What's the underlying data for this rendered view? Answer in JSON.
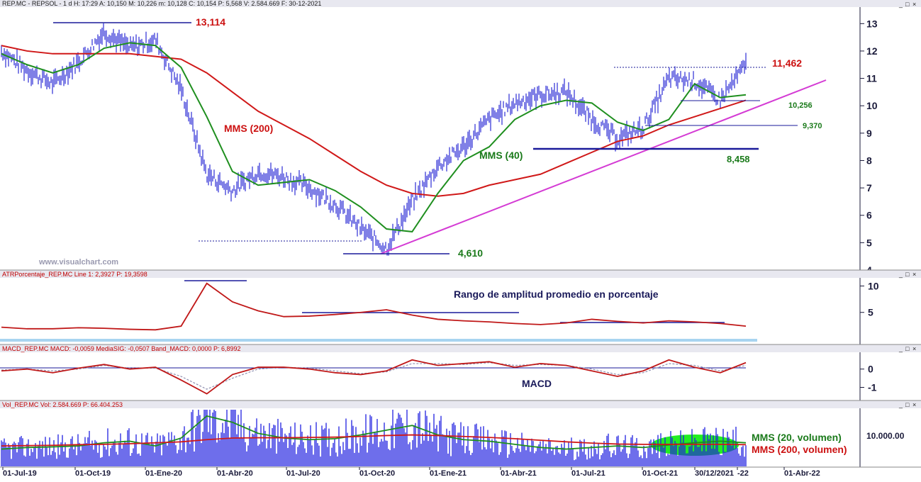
{
  "colors": {
    "price": "#2b2bd6",
    "mms200": "#d01818",
    "mms40": "#1f8f1f",
    "trendline": "#d43bd4",
    "level": "#1a1a9a",
    "axis": "#1a1a3a",
    "ann_red": "#cc1111",
    "ann_green": "#1a7a1a",
    "macd_signal": "#9090b0",
    "header_bar": "#e8e8f0",
    "atr_band": "#a8d4f0",
    "vol_ellipse": "#22ee22"
  },
  "panels": {
    "price": {
      "header": "REP.MC - REPSOL - 1 d H: 17:29 A: 10,150 M: 10,226 m: 10,128 C: 10,154 P: 5,568 V: 2.584.669 F: 30-12-2021",
      "watermark": "www.visualchart.com",
      "yticks": [
        "13",
        "12",
        "11",
        "10",
        "9",
        "8",
        "7",
        "6",
        "5",
        "4"
      ],
      "annotations": {
        "high": "13,114",
        "resistance": "11,462",
        "s1": "10,256",
        "s2": "9,370",
        "s3": "8,458",
        "low": "4,610",
        "mms200_label": "MMS (200)",
        "mms40_label": "MMS (40)"
      }
    },
    "atr": {
      "header": "ATRPorcentaje_REP.MC Line 1: 2,3927 P: 19,3598",
      "title": "Rango de amplitud promedio en porcentaje",
      "yticks": [
        "10",
        "5"
      ]
    },
    "macd": {
      "header": "MACD_REP.MC MACD: -0,0059 MediaSIG: -0,0507 Band_MACD: 0,0000 P: 6,8992",
      "title": "MACD",
      "yticks": [
        "0",
        "-1"
      ]
    },
    "volume": {
      "header": "Vol_REP.MC Vol: 2.584.669 P: 66.404.253",
      "ytick": "10.000.00",
      "mm20_label": "MMS (20, volumen)",
      "mm200_label": "MMS (200, volumen)"
    }
  },
  "window_buttons": [
    "_",
    "□",
    "×"
  ],
  "xaxis": {
    "labels": [
      "01-Jul-19",
      "01-Oct-19",
      "01-Ene-20",
      "01-Abr-20",
      "01-Jul-20",
      "01-Oct-20",
      "01-Ene-21",
      "01-Abr-21",
      "01-Jul-21",
      "01-Oct-21",
      "30/12/2021",
      "-22",
      "01-Abr-22"
    ]
  },
  "chart_data": [
    {
      "type": "line",
      "title": "REP.MC - REPSOL - 1 d",
      "x": [
        "2019-07-01",
        "2019-08-01",
        "2019-09-01",
        "2019-10-01",
        "2019-11-01",
        "2019-12-01",
        "2020-01-01",
        "2020-02-01",
        "2020-03-01",
        "2020-04-01",
        "2020-05-01",
        "2020-06-01",
        "2020-07-01",
        "2020-08-01",
        "2020-09-01",
        "2020-10-01",
        "2020-11-01",
        "2020-12-01",
        "2021-01-01",
        "2021-02-01",
        "2021-03-01",
        "2021-04-01",
        "2021-05-01",
        "2021-06-01",
        "2021-07-01",
        "2021-08-01",
        "2021-09-01",
        "2021-10-01",
        "2021-11-01",
        "2021-12-01"
      ],
      "series": [
        {
          "name": "",
          "values": [
            12.0,
            11.3,
            10.8,
            11.6,
            12.7,
            12.1,
            12.4,
            10.6,
            7.5,
            6.9,
            7.6,
            7.4,
            7.0,
            6.4,
            5.5,
            4.8,
            6.5,
            7.8,
            8.5,
            9.5,
            10.1,
            10.4,
            10.5,
            9.5,
            8.8,
            9.2,
            11.0,
            10.9,
            10.2,
            11.5
          ]
        },
        {
          "name": "MMS (40)",
          "values": [
            11.9,
            11.5,
            11.2,
            11.5,
            12.1,
            12.3,
            12.2,
            11.4,
            9.6,
            7.6,
            7.1,
            7.2,
            7.3,
            6.9,
            6.3,
            5.5,
            5.4,
            6.8,
            8.0,
            8.5,
            9.5,
            10.0,
            10.2,
            10.1,
            9.4,
            9.1,
            9.5,
            10.8,
            10.3,
            10.4
          ]
        },
        {
          "name": "MMS (200)",
          "values": [
            12.2,
            12.0,
            11.9,
            11.9,
            11.9,
            11.9,
            11.8,
            11.7,
            11.2,
            10.5,
            9.8,
            9.3,
            8.8,
            8.2,
            7.6,
            7.1,
            6.8,
            6.7,
            6.8,
            7.1,
            7.3,
            7.5,
            7.9,
            8.3,
            8.7,
            8.9,
            9.3,
            9.6,
            9.9,
            10.2
          ]
        }
      ],
      "levels": [
        13.114,
        11.462,
        10.256,
        9.37,
        8.458,
        4.61
      ],
      "ylim": [
        4,
        13.5
      ]
    },
    {
      "type": "line",
      "title": "Rango de amplitud promedio en porcentaje",
      "series": [
        {
          "name": "",
          "values": [
            2.2,
            1.9,
            1.9,
            2.1,
            2.0,
            1.8,
            1.7,
            2.4,
            10.5,
            7.0,
            5.3,
            4.2,
            4.3,
            4.6,
            5.0,
            5.5,
            4.5,
            3.7,
            3.4,
            3.2,
            2.9,
            2.7,
            3.0,
            3.7,
            3.3,
            3.0,
            3.4,
            3.2,
            2.9,
            2.4
          ]
        }
      ],
      "ylim": [
        0,
        11
      ]
    },
    {
      "type": "line",
      "title": "MACD",
      "series": [
        {
          "name": "",
          "values": [
            -0.1,
            0.0,
            -0.2,
            0.05,
            0.25,
            0.0,
            0.1,
            -0.6,
            -1.35,
            -0.3,
            0.1,
            0.1,
            0.0,
            -0.2,
            -0.3,
            -0.1,
            0.5,
            0.2,
            0.3,
            0.4,
            0.1,
            0.3,
            0.2,
            -0.1,
            -0.4,
            -0.1,
            0.5,
            0.1,
            -0.2,
            0.35
          ]
        },
        {
          "name": "",
          "values": [
            -0.05,
            0.0,
            -0.1,
            0.0,
            0.2,
            0.05,
            0.05,
            -0.4,
            -1.1,
            -0.5,
            0.0,
            0.1,
            0.05,
            -0.1,
            -0.25,
            -0.15,
            0.3,
            0.3,
            0.25,
            0.35,
            0.2,
            0.25,
            0.2,
            0.0,
            -0.3,
            -0.2,
            0.3,
            0.2,
            -0.1,
            0.2
          ]
        }
      ],
      "ylim": [
        -1.6,
        0.8
      ]
    },
    {
      "type": "bar",
      "title": "Vol_REP.MC",
      "series": [
        {
          "name": "MMS (20, volumen)",
          "values": [
            5.5,
            6.0,
            6.2,
            6.5,
            7.5,
            8.0,
            6.5,
            9.0,
            16.0,
            14.0,
            10.5,
            9.0,
            8.5,
            8.8,
            10.0,
            11.5,
            13.0,
            10.0,
            8.5,
            8.0,
            7.0,
            6.0,
            5.5,
            6.0,
            6.5,
            6.0,
            6.8,
            7.5,
            8.0,
            7.5
          ]
        },
        {
          "name": "MMS (200, volumen)",
          "values": [
            6.5,
            6.6,
            6.7,
            6.9,
            7.0,
            7.2,
            7.5,
            7.8,
            8.5,
            9.0,
            9.1,
            9.1,
            9.2,
            9.3,
            9.5,
            9.8,
            10.0,
            9.8,
            9.5,
            9.2,
            8.8,
            8.3,
            7.8,
            7.4,
            7.1,
            7.0,
            7.0,
            7.0,
            7.0,
            6.9
          ]
        }
      ],
      "ylim": [
        0,
        18
      ]
    }
  ]
}
